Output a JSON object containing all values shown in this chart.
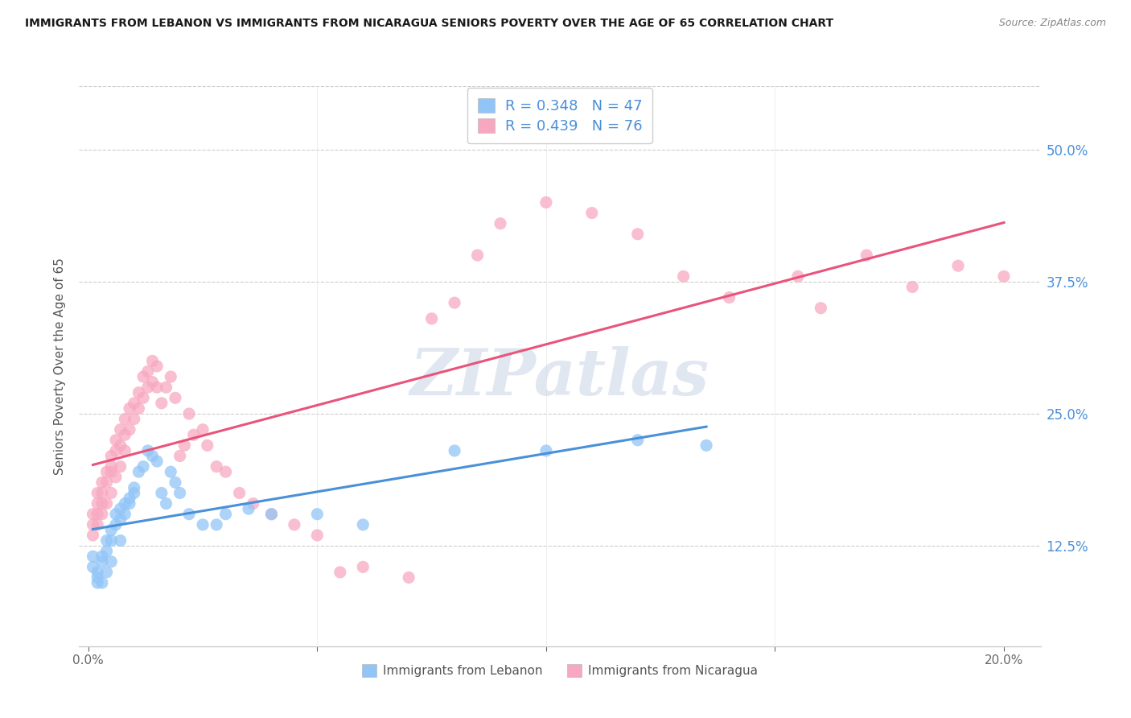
{
  "title": "IMMIGRANTS FROM LEBANON VS IMMIGRANTS FROM NICARAGUA SENIORS POVERTY OVER THE AGE OF 65 CORRELATION CHART",
  "source": "Source: ZipAtlas.com",
  "ylabel": "Seniors Poverty Over the Age of 65",
  "ytick_labels": [
    "12.5%",
    "25.0%",
    "37.5%",
    "50.0%"
  ],
  "ytick_values": [
    0.125,
    0.25,
    0.375,
    0.5
  ],
  "ylim": [
    0.03,
    0.56
  ],
  "xlim": [
    -0.002,
    0.208
  ],
  "legend_label1": "Immigrants from Lebanon",
  "legend_label2": "Immigrants from Nicaragua",
  "R1": 0.348,
  "N1": 47,
  "R2": 0.439,
  "N2": 76,
  "color1": "#92c5f7",
  "color2": "#f7a8c0",
  "line_color1": "#4a90d9",
  "line_color2": "#e8547a",
  "watermark_color": "#d0dce8",
  "lebanon_x": [
    0.001,
    0.001,
    0.002,
    0.002,
    0.002,
    0.003,
    0.003,
    0.003,
    0.004,
    0.004,
    0.004,
    0.005,
    0.005,
    0.005,
    0.006,
    0.006,
    0.007,
    0.007,
    0.007,
    0.008,
    0.008,
    0.009,
    0.009,
    0.01,
    0.01,
    0.011,
    0.012,
    0.013,
    0.014,
    0.015,
    0.016,
    0.017,
    0.018,
    0.019,
    0.02,
    0.022,
    0.025,
    0.028,
    0.03,
    0.035,
    0.04,
    0.05,
    0.06,
    0.08,
    0.1,
    0.12,
    0.135
  ],
  "lebanon_y": [
    0.115,
    0.105,
    0.1,
    0.095,
    0.09,
    0.115,
    0.11,
    0.09,
    0.13,
    0.12,
    0.1,
    0.14,
    0.13,
    0.11,
    0.155,
    0.145,
    0.16,
    0.15,
    0.13,
    0.165,
    0.155,
    0.17,
    0.165,
    0.18,
    0.175,
    0.195,
    0.2,
    0.215,
    0.21,
    0.205,
    0.175,
    0.165,
    0.195,
    0.185,
    0.175,
    0.155,
    0.145,
    0.145,
    0.155,
    0.16,
    0.155,
    0.155,
    0.145,
    0.215,
    0.215,
    0.225,
    0.22
  ],
  "nicaragua_x": [
    0.001,
    0.001,
    0.001,
    0.002,
    0.002,
    0.002,
    0.002,
    0.003,
    0.003,
    0.003,
    0.003,
    0.004,
    0.004,
    0.004,
    0.005,
    0.005,
    0.005,
    0.005,
    0.006,
    0.006,
    0.006,
    0.007,
    0.007,
    0.007,
    0.008,
    0.008,
    0.008,
    0.009,
    0.009,
    0.01,
    0.01,
    0.011,
    0.011,
    0.012,
    0.012,
    0.013,
    0.013,
    0.014,
    0.014,
    0.015,
    0.015,
    0.016,
    0.017,
    0.018,
    0.019,
    0.02,
    0.021,
    0.022,
    0.023,
    0.025,
    0.026,
    0.028,
    0.03,
    0.033,
    0.036,
    0.04,
    0.045,
    0.05,
    0.055,
    0.06,
    0.07,
    0.075,
    0.08,
    0.085,
    0.09,
    0.1,
    0.11,
    0.12,
    0.13,
    0.14,
    0.155,
    0.16,
    0.17,
    0.18,
    0.19,
    0.2
  ],
  "nicaragua_y": [
    0.155,
    0.145,
    0.135,
    0.175,
    0.165,
    0.155,
    0.145,
    0.185,
    0.175,
    0.165,
    0.155,
    0.195,
    0.185,
    0.165,
    0.21,
    0.2,
    0.195,
    0.175,
    0.225,
    0.215,
    0.19,
    0.235,
    0.22,
    0.2,
    0.245,
    0.23,
    0.215,
    0.255,
    0.235,
    0.26,
    0.245,
    0.27,
    0.255,
    0.285,
    0.265,
    0.29,
    0.275,
    0.3,
    0.28,
    0.295,
    0.275,
    0.26,
    0.275,
    0.285,
    0.265,
    0.21,
    0.22,
    0.25,
    0.23,
    0.235,
    0.22,
    0.2,
    0.195,
    0.175,
    0.165,
    0.155,
    0.145,
    0.135,
    0.1,
    0.105,
    0.095,
    0.34,
    0.355,
    0.4,
    0.43,
    0.45,
    0.44,
    0.42,
    0.38,
    0.36,
    0.38,
    0.35,
    0.4,
    0.37,
    0.39,
    0.38
  ]
}
